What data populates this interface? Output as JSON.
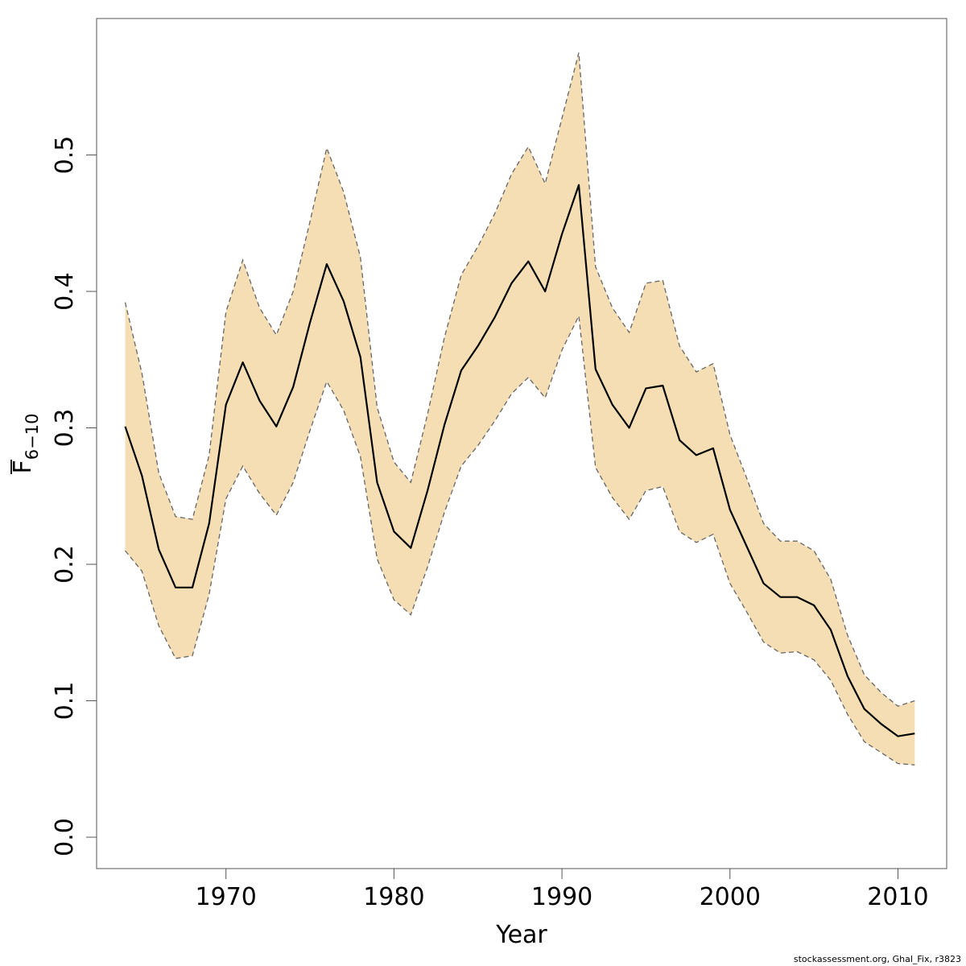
{
  "chart_data": {
    "type": "area",
    "xlabel": "Year",
    "ylabel": "F",
    "ylabel_subscript": "6−10",
    "xlim": [
      1962.3,
      2012.9
    ],
    "ylim": [
      -0.023,
      0.6
    ],
    "x_ticks": [
      1970,
      1980,
      1990,
      2000,
      2010
    ],
    "y_ticks": [
      0.0,
      0.1,
      0.2,
      0.3,
      0.4,
      0.5
    ],
    "x_tick_labels": [
      "1970",
      "1980",
      "1990",
      "2000",
      "2010"
    ],
    "y_tick_labels": [
      "0.0",
      "0.1",
      "0.2",
      "0.3",
      "0.4",
      "0.5"
    ],
    "grid": false,
    "colors": {
      "band": "#F5DEB3",
      "band_edge": "#666666",
      "line": "#000000"
    },
    "x": [
      1964,
      1965,
      1966,
      1967,
      1968,
      1969,
      1970,
      1971,
      1972,
      1973,
      1974,
      1975,
      1976,
      1977,
      1978,
      1979,
      1980,
      1981,
      1982,
      1983,
      1984,
      1985,
      1986,
      1987,
      1988,
      1989,
      1990,
      1991,
      1992,
      1993,
      1994,
      1995,
      1996,
      1997,
      1998,
      1999,
      2000,
      2001,
      2002,
      2003,
      2004,
      2005,
      2006,
      2007,
      2008,
      2009,
      2010,
      2011
    ],
    "series": [
      {
        "role": "estimate",
        "values": [
          0.301,
          0.265,
          0.211,
          0.183,
          0.183,
          0.23,
          0.317,
          0.348,
          0.32,
          0.301,
          0.33,
          0.377,
          0.42,
          0.393,
          0.352,
          0.26,
          0.224,
          0.212,
          0.254,
          0.302,
          0.342,
          0.36,
          0.381,
          0.406,
          0.422,
          0.4,
          0.442,
          0.478,
          0.343,
          0.317,
          0.3,
          0.329,
          0.331,
          0.291,
          0.28,
          0.285,
          0.24,
          0.213,
          0.186,
          0.176,
          0.176,
          0.17,
          0.152,
          0.118,
          0.094,
          0.083,
          0.074,
          0.076
        ]
      },
      {
        "role": "upper",
        "values": [
          0.392,
          0.34,
          0.267,
          0.235,
          0.233,
          0.28,
          0.385,
          0.423,
          0.388,
          0.368,
          0.4,
          0.451,
          0.505,
          0.473,
          0.425,
          0.315,
          0.275,
          0.26,
          0.31,
          0.366,
          0.412,
          0.433,
          0.457,
          0.486,
          0.506,
          0.479,
          0.527,
          0.575,
          0.418,
          0.388,
          0.37,
          0.406,
          0.408,
          0.36,
          0.341,
          0.347,
          0.295,
          0.263,
          0.23,
          0.217,
          0.217,
          0.21,
          0.189,
          0.148,
          0.119,
          0.106,
          0.096,
          0.1
        ]
      },
      {
        "role": "lower",
        "values": [
          0.21,
          0.195,
          0.155,
          0.131,
          0.133,
          0.178,
          0.248,
          0.272,
          0.252,
          0.236,
          0.26,
          0.298,
          0.334,
          0.313,
          0.279,
          0.204,
          0.174,
          0.163,
          0.198,
          0.238,
          0.272,
          0.287,
          0.305,
          0.325,
          0.337,
          0.322,
          0.357,
          0.382,
          0.271,
          0.249,
          0.233,
          0.254,
          0.257,
          0.224,
          0.216,
          0.222,
          0.186,
          0.165,
          0.143,
          0.135,
          0.136,
          0.13,
          0.115,
          0.09,
          0.07,
          0.062,
          0.054,
          0.053
        ]
      }
    ]
  },
  "footer": "stockassessment.org, Ghal_Fix, r3823"
}
